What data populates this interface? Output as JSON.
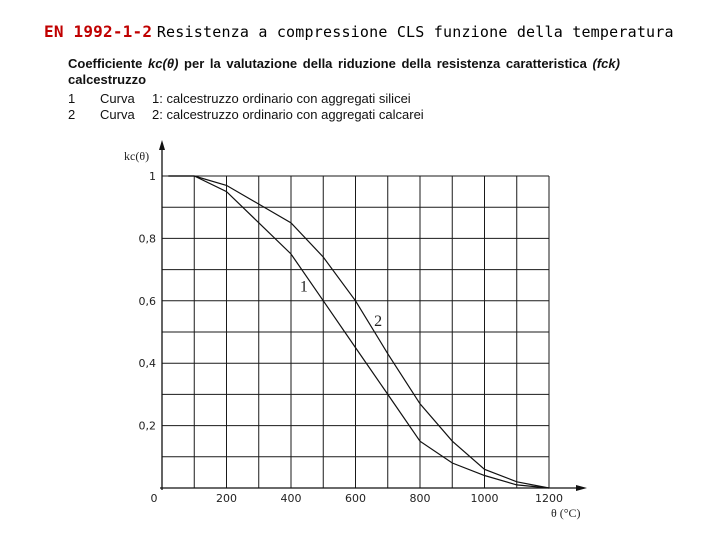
{
  "title": {
    "code": "EN 1992-1-2",
    "rest": "Resistenza a compressione CLS funzione della temperatura"
  },
  "caption": {
    "words": [
      "Coefficiente",
      "kc(θ)",
      "per",
      "la",
      "valutazione",
      "della",
      "riduzione",
      "della",
      "resistenza",
      "caratteristica",
      "(fck)"
    ],
    "line2": "calcestruzzo",
    "items": [
      {
        "num": "1",
        "label": "Curva",
        "text": "1: calcestruzzo ordinario con aggregati silicei"
      },
      {
        "num": "2",
        "label": "Curva",
        "text": "2: calcestruzzo ordinario con aggregati calcarei"
      }
    ]
  },
  "chart_data": {
    "type": "line",
    "xlabel": "θ (°C)",
    "ylabel": "kc(θ)",
    "xlim": [
      0,
      1200
    ],
    "ylim": [
      0,
      1
    ],
    "x_ticks": [
      "0",
      "200",
      "400",
      "600",
      "800",
      "1000",
      "1200"
    ],
    "y_ticks": [
      "1",
      "0,8",
      "0,6",
      "0,4",
      "0,2"
    ],
    "vertical_grid": [
      100,
      200,
      300,
      400,
      500,
      600,
      700,
      800,
      900,
      1000,
      1100,
      1200
    ],
    "horizontal_grid": [
      0.1,
      0.2,
      0.3,
      0.4,
      0.5,
      0.6,
      0.7,
      0.8,
      0.9,
      1.0
    ],
    "grid": true,
    "series": [
      {
        "name": "1",
        "x": [
          20,
          100,
          200,
          300,
          400,
          500,
          600,
          700,
          800,
          900,
          1000,
          1100,
          1200
        ],
        "y": [
          1.0,
          1.0,
          0.95,
          0.85,
          0.75,
          0.6,
          0.45,
          0.3,
          0.15,
          0.08,
          0.04,
          0.01,
          0.0
        ]
      },
      {
        "name": "2",
        "x": [
          20,
          100,
          200,
          300,
          400,
          500,
          600,
          700,
          800,
          900,
          1000,
          1100,
          1200
        ],
        "y": [
          1.0,
          1.0,
          0.97,
          0.91,
          0.85,
          0.74,
          0.6,
          0.43,
          0.27,
          0.15,
          0.06,
          0.02,
          0.0
        ]
      }
    ],
    "curve_labels": [
      {
        "text": "1",
        "x": 440,
        "y": 0.63
      },
      {
        "text": "2",
        "x": 670,
        "y": 0.52
      }
    ]
  }
}
